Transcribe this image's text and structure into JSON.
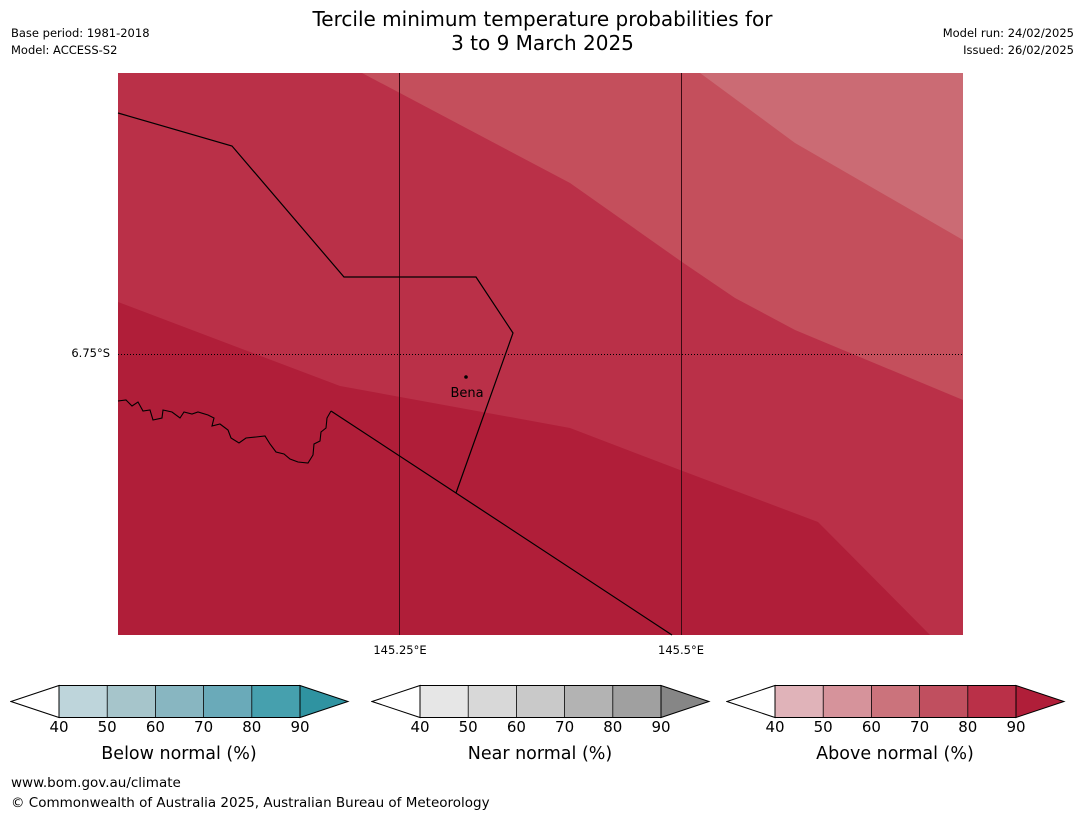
{
  "title": {
    "line1": "Tercile minimum temperature probabilities for",
    "line2": "3 to 9 March 2025"
  },
  "meta_left": {
    "base_period": "Base period: 1981-2018",
    "model": "Model: ACCESS-S2"
  },
  "meta_right": {
    "model_run": "Model run: 24/02/2025",
    "issued": "Issued: 26/02/2025"
  },
  "map": {
    "lat_label": "6.75°S",
    "lon_labels": [
      "145.25°E",
      "145.5°E"
    ],
    "place_label": "Bena",
    "shading_levels": [
      "70-80",
      "80-90",
      "90+"
    ],
    "shading_colors": [
      "#c44f5c",
      "#ba3048",
      "#b01e39"
    ],
    "top_right_color": "#cb6b74",
    "boundary_color": "#000000"
  },
  "legends": [
    {
      "title": "Below normal (%)",
      "ticks": [
        "40",
        "50",
        "60",
        "70",
        "80",
        "90"
      ],
      "colors": [
        "#ffffff",
        "#bed5db",
        "#a6c5cb",
        "#88b6c1",
        "#6aaab9",
        "#46a0ae",
        "#2f93a1"
      ]
    },
    {
      "title": "Near normal (%)",
      "ticks": [
        "40",
        "50",
        "60",
        "70",
        "80",
        "90"
      ],
      "colors": [
        "#ffffff",
        "#e6e6e6",
        "#d8d8d8",
        "#c9c9c9",
        "#b3b3b3",
        "#a0a0a0",
        "#868686"
      ]
    },
    {
      "title": "Above normal (%)",
      "ticks": [
        "40",
        "50",
        "60",
        "70",
        "80",
        "90"
      ],
      "colors": [
        "#ffffff",
        "#e0b3b9",
        "#d6939b",
        "#cb737c",
        "#c04f5f",
        "#ba3048",
        "#b01e39"
      ]
    }
  ],
  "footer": {
    "url": "www.bom.gov.au/climate",
    "copyright": "© Commonwealth of Australia 2025, Australian Bureau of Meteorology"
  }
}
